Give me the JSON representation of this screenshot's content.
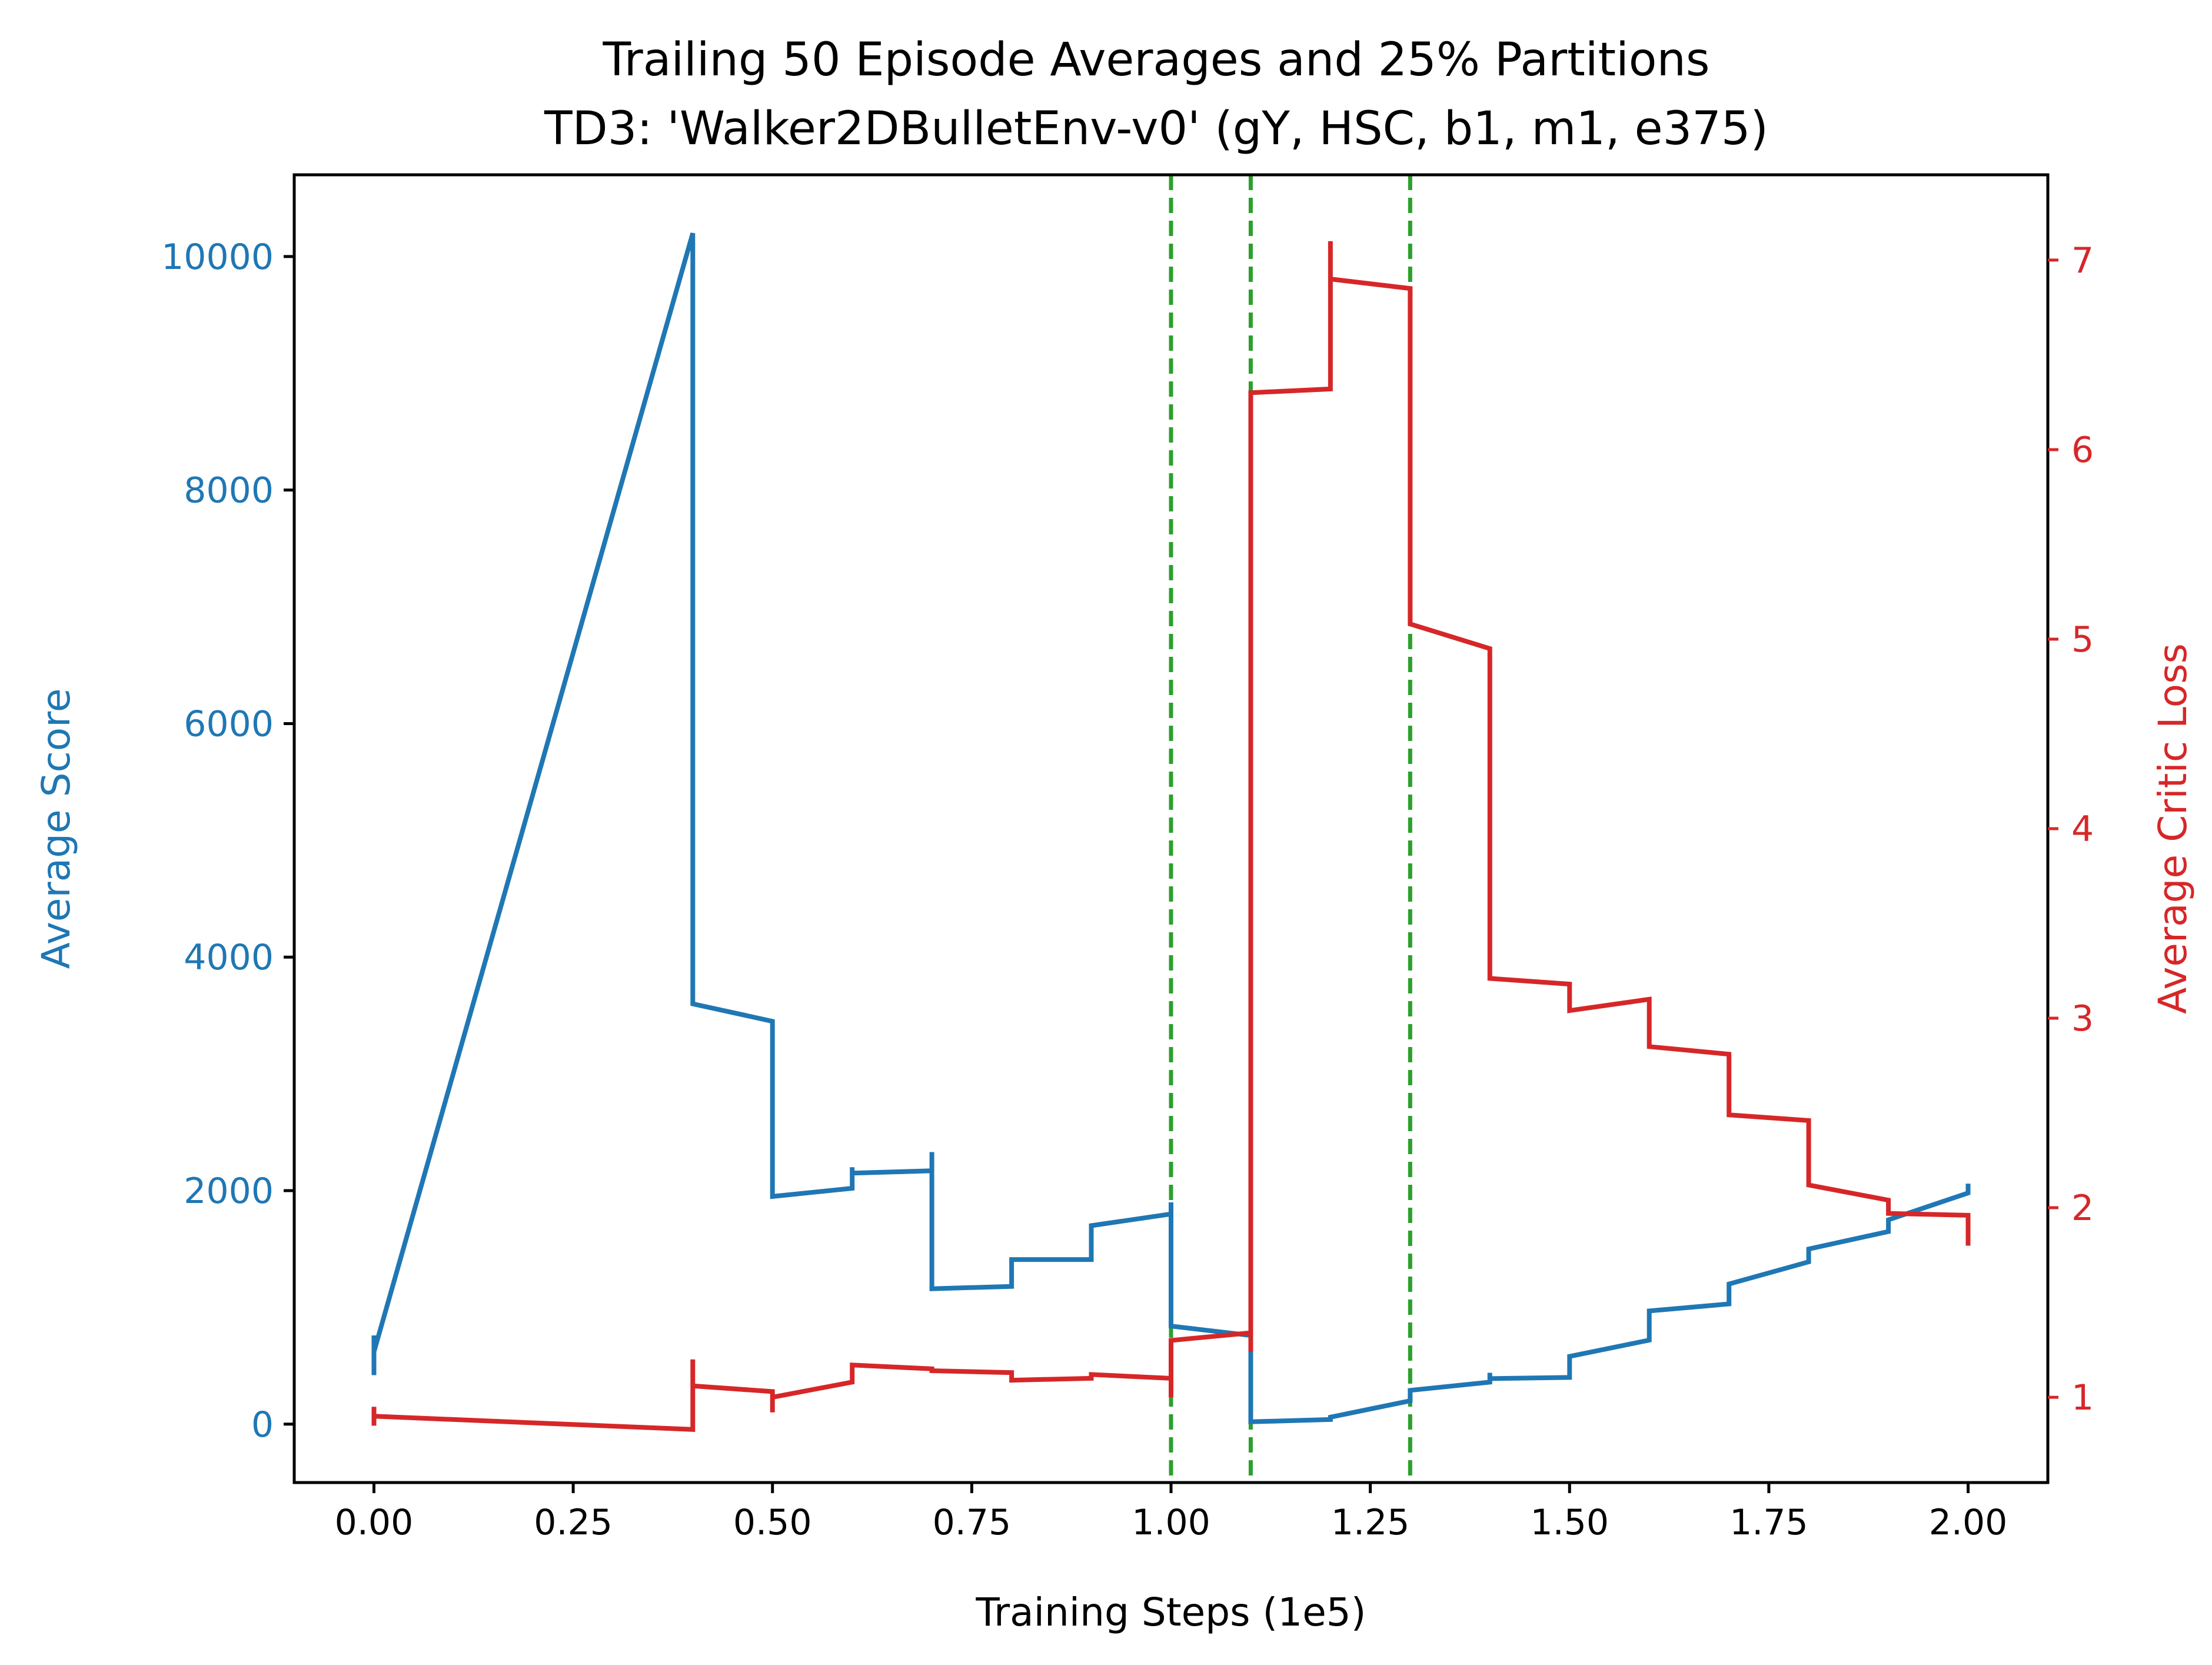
{
  "chart_data": {
    "type": "line",
    "title": "Trailing 50 Episode Averages and 25% Partitions",
    "subtitle": "TD3: 'Walker2DBulletEnv-v0' (gY, HSC, b1, m1, e375)",
    "xlabel": "Training Steps (1e5)",
    "ylabel_left": "Average Score",
    "ylabel_right": "Average Critic Loss",
    "xlim": [
      -0.1,
      2.1
    ],
    "ylim_left": [
      -500,
      10700
    ],
    "ylim_right": [
      0.55,
      7.45
    ],
    "x_ticks": [
      0.0,
      0.25,
      0.5,
      0.75,
      1.0,
      1.25,
      1.5,
      1.75,
      2.0
    ],
    "x_tick_labels": [
      "0.00",
      "0.25",
      "0.50",
      "0.75",
      "1.00",
      "1.25",
      "1.50",
      "1.75",
      "2.00"
    ],
    "y_left_ticks": [
      0,
      2000,
      4000,
      6000,
      8000,
      10000
    ],
    "y_left_tick_labels": [
      "0",
      "2000",
      "4000",
      "6000",
      "8000",
      "10000"
    ],
    "y_right_ticks": [
      1,
      2,
      3,
      4,
      5,
      6,
      7
    ],
    "y_right_tick_labels": [
      "1",
      "2",
      "3",
      "4",
      "5",
      "6",
      "7"
    ],
    "grid": false,
    "partitions": [
      1.0,
      1.1,
      1.3
    ],
    "colors": {
      "score": "#1f77b4",
      "loss": "#d62728",
      "partition": "#2ca02c"
    },
    "series": [
      {
        "axis": "left",
        "color": "#1f77b4",
        "x": [
          0.0,
          0.0,
          0.0,
          0.4,
          0.4,
          0.4,
          0.5,
          0.5,
          0.5,
          0.6,
          0.6,
          0.6,
          0.6,
          0.7,
          0.7,
          0.7,
          0.8,
          0.8,
          0.9,
          0.9,
          1.0,
          1.0,
          1.0,
          1.1,
          1.1,
          1.2,
          1.2,
          1.3,
          1.3,
          1.4,
          1.4,
          1.4,
          1.5,
          1.5,
          1.6,
          1.6,
          1.7,
          1.7,
          1.8,
          1.8,
          1.9,
          1.9,
          2.0,
          2.0
        ],
        "y": [
          420,
          760,
          620,
          10200,
          10200,
          3600,
          3450,
          1950,
          1950,
          2020,
          2200,
          2120,
          2150,
          2170,
          2330,
          1160,
          1180,
          1410,
          1410,
          1700,
          1800,
          1900,
          840,
          760,
          20,
          40,
          60,
          200,
          290,
          360,
          440,
          390,
          400,
          580,
          720,
          970,
          1030,
          1200,
          1390,
          1500,
          1650,
          1750,
          1980,
          2060
        ]
      },
      {
        "axis": "right",
        "color": "#d62728",
        "x": [
          0.0,
          0.0,
          0.0,
          0.4,
          0.4,
          0.4,
          0.5,
          0.5,
          0.5,
          0.6,
          0.6,
          0.7,
          0.7,
          0.8,
          0.8,
          0.9,
          0.9,
          1.0,
          1.0,
          1.0,
          1.1,
          1.1,
          1.1,
          1.2,
          1.2,
          1.2,
          1.3,
          1.3,
          1.4,
          1.4,
          1.5,
          1.5,
          1.6,
          1.6,
          1.7,
          1.7,
          1.8,
          1.8,
          1.9,
          1.9,
          2.0,
          2.0
        ],
        "y": [
          0.85,
          0.95,
          0.9,
          0.83,
          1.2,
          1.06,
          1.03,
          0.92,
          1.0,
          1.08,
          1.17,
          1.15,
          1.14,
          1.13,
          1.09,
          1.1,
          1.12,
          1.1,
          1.0,
          1.3,
          1.34,
          1.24,
          6.3,
          6.32,
          7.1,
          6.9,
          6.85,
          5.08,
          4.95,
          3.21,
          3.18,
          3.04,
          3.1,
          2.85,
          2.81,
          2.49,
          2.46,
          2.12,
          2.04,
          1.97,
          1.96,
          1.8
        ]
      }
    ]
  }
}
